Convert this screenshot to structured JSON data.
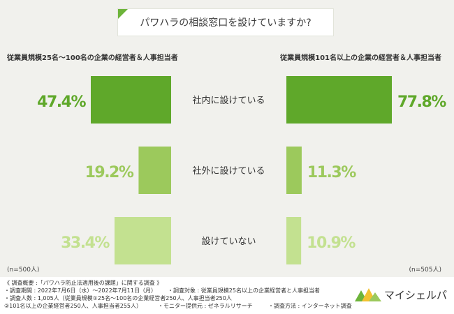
{
  "title": "パワハラの相談窓口を設けていますか?",
  "left_header": "従業員規模25名〜100名の企業の経営者＆人事担当者",
  "right_header": "従業員規模101名以上の企業の経営者＆人事担当者",
  "left_n": "(n=500人)",
  "right_n": "(n=505人)",
  "colors": {
    "accent": "#6db43a",
    "cat1": "#5fa82a",
    "cat2": "#9cc95c",
    "cat3": "#c3e190"
  },
  "chart_data": {
    "type": "bar",
    "orientation": "horizontal-butterfly",
    "categories": [
      "社内に設けている",
      "社外に設けている",
      "設けていない"
    ],
    "series": [
      {
        "values": [
          47.4,
          19.2,
          33.4
        ],
        "labels": [
          "47.4%",
          "19.2%",
          "33.4%"
        ]
      },
      {
        "values": [
          77.8,
          11.3,
          10.9
        ],
        "labels": [
          "77.8%",
          "11.3%",
          "10.9%"
        ]
      }
    ],
    "unit": "%",
    "xlim": [
      0,
      100
    ]
  },
  "footer": {
    "line1": "《 調査概要 :「パワハラ防止法適用後の課題」に関する調査 》",
    "line2": "・調査期間 : 2022年7月6日（水）〜2022年7月11日（月）",
    "line2b": "・調査対象 : 従業員規模25名以上の企業経営者と人事担当者",
    "line3": "・調査人数 : 1,005人（従業員規模①25名〜100名の企業経営者250人、人事担当者250人",
    "line4": "②101名以上の企業経営者250人、人事担当者255人）",
    "line4b": "・モニター提供元 : ゼネラルリサーチ",
    "line4c": "・調査方法 : インターネット調査",
    "logo": "マイシェルパ"
  }
}
